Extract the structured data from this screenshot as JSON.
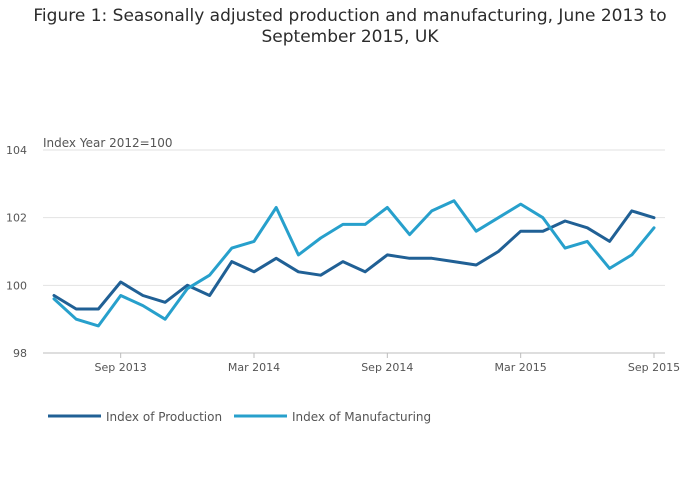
{
  "chart_data": {
    "type": "line",
    "title_line1": "Figure 1: Seasonally adjusted production and manufacturing, June 2013 to",
    "title_line2": "September 2015, UK",
    "ylabel": "Index Year 2012=100",
    "xlabel": "",
    "ylim": [
      98,
      104
    ],
    "yticks": [
      98,
      100,
      102,
      104
    ],
    "xtick_labels": [
      {
        "label": "Sep 2013",
        "index": 3
      },
      {
        "label": "Mar 2014",
        "index": 9
      },
      {
        "label": "Sep 2014",
        "index": 15
      },
      {
        "label": "Mar 2015",
        "index": 21
      },
      {
        "label": "Sep 2015",
        "index": 27
      }
    ],
    "categories": [
      "Jun 2013",
      "Jul 2013",
      "Aug 2013",
      "Sep 2013",
      "Oct 2013",
      "Nov 2013",
      "Dec 2013",
      "Jan 2014",
      "Feb 2014",
      "Mar 2014",
      "Apr 2014",
      "May 2014",
      "Jun 2014",
      "Jul 2014",
      "Aug 2014",
      "Sep 2014",
      "Oct 2014",
      "Nov 2014",
      "Dec 2014",
      "Jan 2015",
      "Feb 2015",
      "Mar 2015",
      "Apr 2015",
      "May 2015",
      "Jun 2015",
      "Jul 2015",
      "Aug 2015",
      "Sep 2015"
    ],
    "series": [
      {
        "name": "Index of Production",
        "color": "#206095",
        "values": [
          99.7,
          99.3,
          99.3,
          100.1,
          99.7,
          99.5,
          100.0,
          99.7,
          100.7,
          100.4,
          100.8,
          100.4,
          100.3,
          100.7,
          100.4,
          100.9,
          100.8,
          100.8,
          100.7,
          100.6,
          101.0,
          101.6,
          101.6,
          101.9,
          101.7,
          101.3,
          102.2,
          102.0
        ]
      },
      {
        "name": "Index of Manufacturing",
        "color": "#27a0cc",
        "values": [
          99.6,
          99.0,
          98.8,
          99.7,
          99.4,
          99.0,
          99.9,
          100.3,
          101.1,
          101.3,
          102.3,
          100.9,
          101.4,
          101.8,
          101.8,
          102.3,
          101.5,
          102.2,
          102.5,
          101.6,
          102.0,
          102.4,
          102.0,
          101.1,
          101.3,
          100.5,
          100.9,
          101.7
        ]
      }
    ]
  }
}
